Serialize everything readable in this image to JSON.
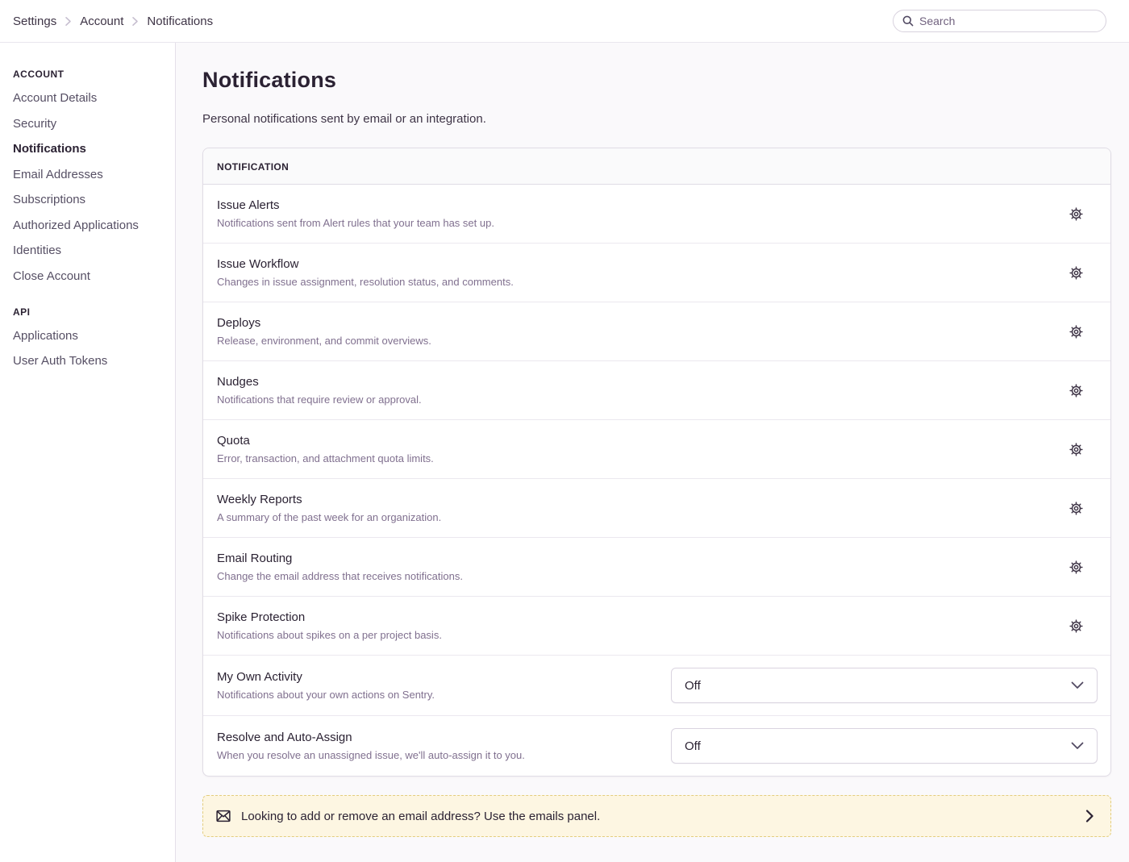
{
  "topbar": {
    "breadcrumbs": [
      {
        "label": "Settings"
      },
      {
        "label": "Account"
      },
      {
        "label": "Notifications"
      }
    ],
    "search": {
      "placeholder": "Search"
    }
  },
  "sidebar": {
    "sections": [
      {
        "heading": "ACCOUNT",
        "items": [
          {
            "label": "Account Details",
            "active": false
          },
          {
            "label": "Security",
            "active": false
          },
          {
            "label": "Notifications",
            "active": true
          },
          {
            "label": "Email Addresses",
            "active": false
          },
          {
            "label": "Subscriptions",
            "active": false
          },
          {
            "label": "Authorized Applications",
            "active": false
          },
          {
            "label": "Identities",
            "active": false
          },
          {
            "label": "Close Account",
            "active": false
          }
        ]
      },
      {
        "heading": "API",
        "items": [
          {
            "label": "Applications",
            "active": false
          },
          {
            "label": "User Auth Tokens",
            "active": false
          }
        ]
      }
    ]
  },
  "main": {
    "title": "Notifications",
    "subtitle": "Personal notifications sent by email or an integration.",
    "panel": {
      "header": "NOTIFICATION",
      "rows": [
        {
          "title": "Issue Alerts",
          "description": "Notifications sent from Alert rules that your team has set up.",
          "control": "gear"
        },
        {
          "title": "Issue Workflow",
          "description": "Changes in issue assignment, resolution status, and comments.",
          "control": "gear"
        },
        {
          "title": "Deploys",
          "description": "Release, environment, and commit overviews.",
          "control": "gear"
        },
        {
          "title": "Nudges",
          "description": "Notifications that require review or approval.",
          "control": "gear"
        },
        {
          "title": "Quota",
          "description": "Error, transaction, and attachment quota limits.",
          "control": "gear"
        },
        {
          "title": "Weekly Reports",
          "description": "A summary of the past week for an organization.",
          "control": "gear"
        },
        {
          "title": "Email Routing",
          "description": "Change the email address that receives notifications.",
          "control": "gear"
        },
        {
          "title": "Spike Protection",
          "description": "Notifications about spikes on a per project basis.",
          "control": "gear"
        },
        {
          "title": "My Own Activity",
          "description": "Notifications about your own actions on Sentry.",
          "control": "select",
          "value": "Off"
        },
        {
          "title": "Resolve and Auto-Assign",
          "description": "When you resolve an unassigned issue, we'll auto-assign it to you.",
          "control": "select",
          "value": "Off"
        }
      ]
    },
    "banner": {
      "text": "Looking to add or remove an email address? Use the emails panel."
    }
  },
  "colors": {
    "text_primary": "#2B2233",
    "text_secondary": "#80708F",
    "border": "#E0DCE5",
    "banner_bg": "#FDF6E2",
    "banner_border": "#E3CD7D"
  }
}
